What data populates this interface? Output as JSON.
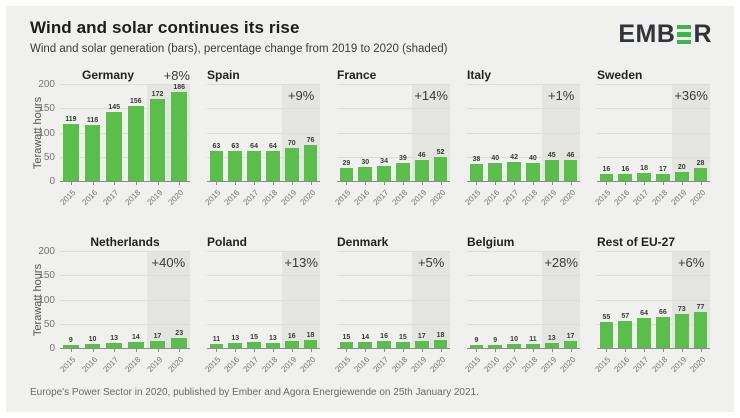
{
  "header": {
    "title": "Wind and solar continues its rise",
    "subtitle": "Wind and solar generation (bars), percentage change from 2019 to 2020 (shaded)",
    "logo": {
      "prefix": "EMB",
      "suffix": "R"
    }
  },
  "y_axis": {
    "label": "Terawatt hours",
    "ticks": [
      0,
      50,
      100,
      150,
      200
    ]
  },
  "footer": {
    "source": "Europe's Power Sector in 2020, published by Ember and Agora Energiewende on 25th January 2021."
  },
  "colors": {
    "bar_green": "#5abe4b",
    "canvas_bg": "#f0f0ee",
    "shaded_band": "#e4e4e1",
    "logo_dark": "#32343a",
    "logo_green": "#3cb54a"
  },
  "chart_data": [
    {
      "type": "bar",
      "title": "Germany",
      "change_label": "+8%",
      "categories": [
        "2015",
        "2016",
        "2017",
        "2018",
        "2019",
        "2020"
      ],
      "values": [
        119,
        118,
        145,
        156,
        172,
        186
      ],
      "ylim": [
        0,
        200
      ],
      "shaded_categories": [
        "2019",
        "2020"
      ]
    },
    {
      "type": "bar",
      "title": "Spain",
      "change_label": "+9%",
      "categories": [
        "2015",
        "2016",
        "2017",
        "2018",
        "2019",
        "2020"
      ],
      "values": [
        63,
        63,
        64,
        64,
        70,
        76
      ],
      "ylim": [
        0,
        200
      ],
      "shaded_categories": [
        "2019",
        "2020"
      ]
    },
    {
      "type": "bar",
      "title": "France",
      "change_label": "+14%",
      "categories": [
        "2015",
        "2016",
        "2017",
        "2018",
        "2019",
        "2020"
      ],
      "values": [
        29,
        30,
        34,
        39,
        46,
        52
      ],
      "ylim": [
        0,
        200
      ],
      "shaded_categories": [
        "2019",
        "2020"
      ]
    },
    {
      "type": "bar",
      "title": "Italy",
      "change_label": "+1%",
      "categories": [
        "2015",
        "2016",
        "2017",
        "2018",
        "2019",
        "2020"
      ],
      "values": [
        38,
        40,
        42,
        40,
        45,
        46
      ],
      "ylim": [
        0,
        200
      ],
      "shaded_categories": [
        "2019",
        "2020"
      ]
    },
    {
      "type": "bar",
      "title": "Sweden",
      "change_label": "+36%",
      "categories": [
        "2015",
        "2016",
        "2017",
        "2018",
        "2019",
        "2020"
      ],
      "values": [
        16,
        16,
        18,
        17,
        20,
        28
      ],
      "ylim": [
        0,
        200
      ],
      "shaded_categories": [
        "2019",
        "2020"
      ]
    },
    {
      "type": "bar",
      "title": "Netherlands",
      "change_label": "+40%",
      "categories": [
        "2015",
        "2016",
        "2017",
        "2018",
        "2019",
        "2020"
      ],
      "values": [
        9,
        10,
        13,
        14,
        17,
        23
      ],
      "ylim": [
        0,
        200
      ],
      "shaded_categories": [
        "2019",
        "2020"
      ]
    },
    {
      "type": "bar",
      "title": "Poland",
      "change_label": "+13%",
      "categories": [
        "2015",
        "2016",
        "2017",
        "2018",
        "2019",
        "2020"
      ],
      "values": [
        11,
        13,
        15,
        13,
        16,
        18
      ],
      "ylim": [
        0,
        200
      ],
      "shaded_categories": [
        "2019",
        "2020"
      ]
    },
    {
      "type": "bar",
      "title": "Denmark",
      "change_label": "+5%",
      "categories": [
        "2015",
        "2016",
        "2017",
        "2018",
        "2019",
        "2020"
      ],
      "values": [
        15,
        14,
        16,
        15,
        17,
        18
      ],
      "ylim": [
        0,
        200
      ],
      "shaded_categories": [
        "2019",
        "2020"
      ]
    },
    {
      "type": "bar",
      "title": "Belgium",
      "change_label": "+28%",
      "categories": [
        "2015",
        "2016",
        "2017",
        "2018",
        "2019",
        "2020"
      ],
      "values": [
        9,
        9,
        10,
        11,
        13,
        17
      ],
      "ylim": [
        0,
        200
      ],
      "shaded_categories": [
        "2019",
        "2020"
      ]
    },
    {
      "type": "bar",
      "title": "Rest of EU-27",
      "change_label": "+6%",
      "categories": [
        "2015",
        "2016",
        "2017",
        "2018",
        "2019",
        "2020"
      ],
      "values": [
        55,
        57,
        64,
        66,
        73,
        77
      ],
      "ylim": [
        0,
        200
      ],
      "shaded_categories": [
        "2019",
        "2020"
      ]
    }
  ]
}
